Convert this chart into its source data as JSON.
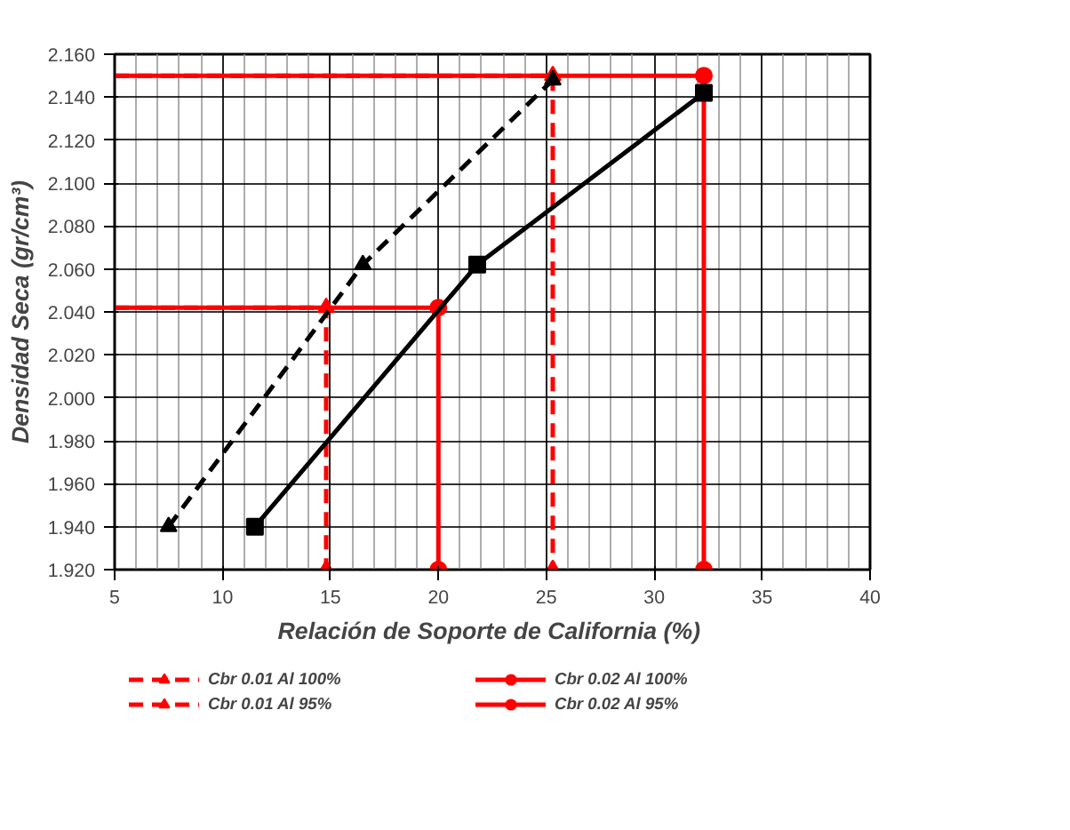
{
  "chart_data": {
    "type": "line",
    "xlabel": "Relación de Soporte de California  (%)",
    "ylabel": "Densidad Seca (gr/cm³)",
    "xlim": [
      5,
      40
    ],
    "xticks": [
      5,
      10,
      15,
      20,
      25,
      30,
      35,
      40
    ],
    "ylim": [
      1.92,
      2.16
    ],
    "yticks": [
      {
        "value": 1.92,
        "label": "1.920"
      },
      {
        "value": 1.94,
        "label": "1.940"
      },
      {
        "value": 1.96,
        "label": "1.960"
      },
      {
        "value": 1.98,
        "label": "1.980"
      },
      {
        "value": 2.0,
        "label": "2.000"
      },
      {
        "value": 2.02,
        "label": "2.020"
      },
      {
        "value": 2.04,
        "label": "2.040"
      },
      {
        "value": 2.06,
        "label": "2.060"
      },
      {
        "value": 2.08,
        "label": "2.080"
      },
      {
        "value": 2.1,
        "label": "2.100"
      },
      {
        "value": 2.12,
        "label": "2.120"
      },
      {
        "value": 2.14,
        "label": "2.140"
      },
      {
        "value": 2.16,
        "label": "2.160"
      }
    ],
    "grid": true,
    "legend": "bottom",
    "series": [
      {
        "name": "Cbr 0.01 Al 100%",
        "color": "#ff0000",
        "line_style": "dashed",
        "marker": "triangle",
        "x": [
          5,
          25.3,
          25.3
        ],
        "values": [
          2.15,
          2.15,
          1.92
        ]
      },
      {
        "name": "Cbr 0.01 Al 95%",
        "color": "#ff0000",
        "line_style": "dashed",
        "marker": "triangle",
        "x": [
          5,
          14.8,
          14.8
        ],
        "values": [
          2.042,
          2.042,
          1.92
        ]
      },
      {
        "name": "Cbr 0.02 Al 100%",
        "color": "#ff0000",
        "line_style": "solid",
        "marker": "circle",
        "x": [
          5,
          32.3,
          32.3
        ],
        "values": [
          2.15,
          2.15,
          1.92
        ]
      },
      {
        "name": "Cbr 0.02 Al 95%",
        "color": "#ff0000",
        "line_style": "solid",
        "marker": "circle",
        "x": [
          5,
          20,
          20
        ],
        "values": [
          2.042,
          2.042,
          1.92
        ]
      },
      {
        "color": "#000000",
        "line_style": "dashed",
        "marker": "triangle",
        "x": [
          7.5,
          16.5,
          25.3
        ],
        "values": [
          1.94,
          2.062,
          2.148
        ]
      },
      {
        "color": "#000000",
        "line_style": "solid",
        "marker": "square",
        "x": [
          11.5,
          21.8,
          32.3
        ],
        "values": [
          1.94,
          2.062,
          2.142
        ]
      }
    ]
  }
}
